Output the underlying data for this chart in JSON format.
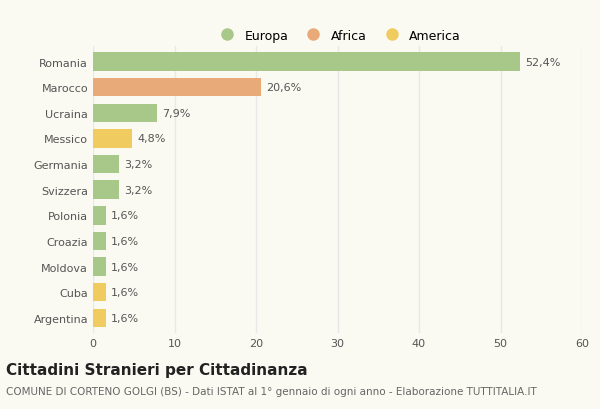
{
  "categories": [
    "Romania",
    "Marocco",
    "Ucraina",
    "Messico",
    "Germania",
    "Svizzera",
    "Polonia",
    "Croazia",
    "Moldova",
    "Cuba",
    "Argentina"
  ],
  "values": [
    52.4,
    20.6,
    7.9,
    4.8,
    3.2,
    3.2,
    1.6,
    1.6,
    1.6,
    1.6,
    1.6
  ],
  "labels": [
    "52,4%",
    "20,6%",
    "7,9%",
    "4,8%",
    "3,2%",
    "3,2%",
    "1,6%",
    "1,6%",
    "1,6%",
    "1,6%",
    "1,6%"
  ],
  "colors": [
    "#a8c88a",
    "#e8aa78",
    "#a8c88a",
    "#f0cc60",
    "#a8c88a",
    "#a8c88a",
    "#a8c88a",
    "#a8c88a",
    "#a8c88a",
    "#f0cc60",
    "#f0cc60"
  ],
  "legend": [
    {
      "label": "Europa",
      "color": "#a8c88a"
    },
    {
      "label": "Africa",
      "color": "#e8aa78"
    },
    {
      "label": "America",
      "color": "#f0cc60"
    }
  ],
  "title": "Cittadini Stranieri per Cittadinanza",
  "subtitle": "COMUNE DI CORTENO GOLGI (BS) - Dati ISTAT al 1° gennaio di ogni anno - Elaborazione TUTTITALIA.IT",
  "xlim": [
    0,
    60
  ],
  "xticks": [
    0,
    10,
    20,
    30,
    40,
    50,
    60
  ],
  "background_color": "#fafaf2",
  "grid_color": "#e8e8e8",
  "bar_height": 0.72,
  "title_fontsize": 11,
  "subtitle_fontsize": 7.5,
  "label_fontsize": 8,
  "tick_fontsize": 8,
  "legend_fontsize": 9
}
